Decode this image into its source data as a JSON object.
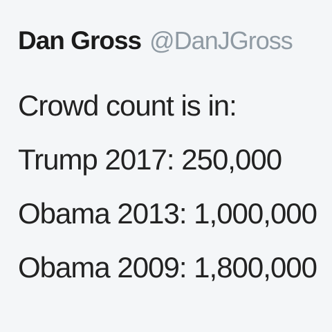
{
  "tweet": {
    "author": {
      "display_name": "Dan Gross",
      "handle": "@DanJGross"
    },
    "lines": [
      "Crowd count is in:",
      "Trump 2017: 250,000",
      "Obama 2013: 1,000,000",
      "Obama 2009: 1,800,000"
    ]
  }
}
